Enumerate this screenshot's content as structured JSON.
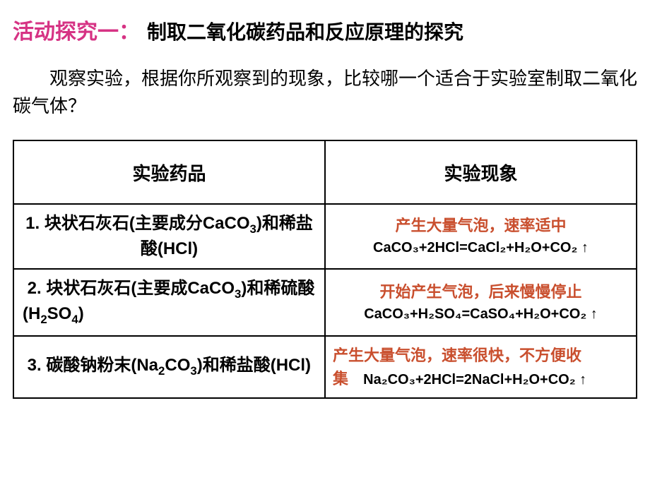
{
  "colors": {
    "title_accent": "#d63384",
    "phenomenon_text": "#c94f2e",
    "black": "#000000"
  },
  "title": {
    "label": "活动探究一：",
    "content": "制取二氧化碳药品和反应原理的探究"
  },
  "description": "观察实验，根据你所观察到的现象，比较哪一个适合于实验室制取二氧化碳气体？",
  "table": {
    "headers": [
      "实验药品",
      "实验现象"
    ],
    "rows": [
      {
        "reagent_prefix": "1. 块状石灰石(主要成分CaCO",
        "reagent_sub1": "3",
        "reagent_mid": ")和稀盐酸(HCl)",
        "phenomenon": "产生大量气泡，速率适中",
        "equation": "CaCO₃+2HCl=CaCl₂+H₂O+CO₂ ↑"
      },
      {
        "reagent_prefix": "2. 块状石灰石(主要成CaCO",
        "reagent_sub1": "3",
        "reagent_mid1": ")和稀硫酸(H",
        "reagent_sub2": "2",
        "reagent_mid2": "SO",
        "reagent_sub3": "4",
        "reagent_end": ")",
        "phenomenon": "开始产生气泡，后来慢慢停止",
        "equation": "CaCO₃+H₂SO₄=CaSO₄+H₂O+CO₂ ↑"
      },
      {
        "reagent_prefix": "3. 碳酸钠粉末(Na",
        "reagent_sub1": "2",
        "reagent_mid1": "CO",
        "reagent_sub2": "3",
        "reagent_mid2": ")和稀盐酸(HCl)",
        "phenomenon1": "产生大量气泡，速率很快，不方便收",
        "phenomenon2": "集",
        "equation": "Na₂CO₃+2HCl=2NaCl+H₂O+CO₂ ↑"
      }
    ]
  }
}
